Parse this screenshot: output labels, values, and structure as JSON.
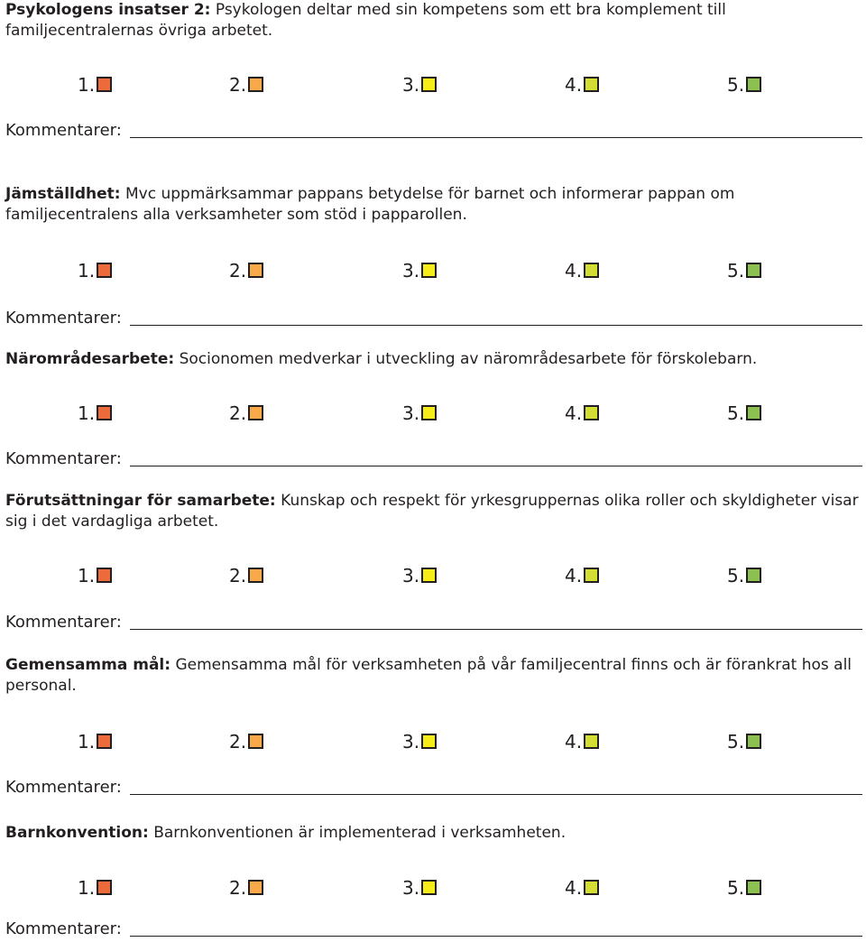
{
  "colors": {
    "1": "#ed6a3a",
    "2": "#f8a94a",
    "3": "#f6ec1a",
    "4": "#d4dd34",
    "5": "#8cc152"
  },
  "comment_label": "Kommentarer:",
  "sections": [
    {
      "label": "Psykologens insatser 2:",
      "text": "Psykologen deltar med sin kompetens som ett bra komplement till familjecentralernas övriga arbetet.",
      "ratings": [
        "1.",
        "2.",
        "3.",
        "4.",
        "5."
      ]
    },
    {
      "label": "Jämställdhet:",
      "text": "Mvc uppmärksammar pappans betydelse för barnet och informerar pappan om familjecentralens alla verksamheter som stöd i papparollen.",
      "ratings": [
        "1.",
        "2.",
        "3.",
        "4.",
        "5."
      ]
    },
    {
      "label": "Närområdesarbete:",
      "text": "Socionomen medverkar i utveckling av närområdesarbete för förskolebarn.",
      "ratings": [
        "1.",
        "2.",
        "3.",
        "4.",
        "5."
      ]
    },
    {
      "label": "Förutsättningar för samarbete:",
      "text": "Kunskap och respekt för yrkesgruppernas olika roller och skyldigheter visar sig  i det vardagliga arbetet.",
      "ratings": [
        "1.",
        "2.",
        "3.",
        "4.",
        "5."
      ]
    },
    {
      "label": "Gemensamma mål:",
      "text": "Gemensamma mål för verksamheten på vår familjecentral finns och är förankrat hos all personal.",
      "ratings": [
        "1.",
        "2.",
        "3.",
        "4.",
        "5."
      ]
    },
    {
      "label": "Barnkonvention:",
      "text": "Barnkonventionen är implementerad i verksamheten.",
      "ratings": [
        "1.",
        "2.",
        "3.",
        "4.",
        "5."
      ]
    }
  ]
}
